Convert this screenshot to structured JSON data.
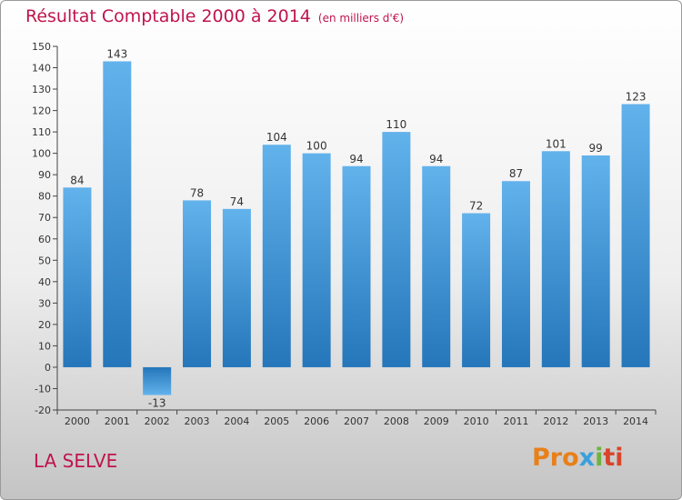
{
  "chart_data": {
    "type": "bar",
    "title": "Résultat Comptable 2000 à 2014",
    "subtitle": "(en milliers d'€)",
    "categories": [
      "2000",
      "2001",
      "2002",
      "2003",
      "2004",
      "2005",
      "2006",
      "2007",
      "2008",
      "2009",
      "2010",
      "2011",
      "2012",
      "2013",
      "2014"
    ],
    "values": [
      84,
      143,
      -13,
      78,
      74,
      104,
      100,
      94,
      110,
      94,
      72,
      87,
      101,
      99,
      123
    ],
    "value_labels": [
      "84",
      "143",
      "-13",
      "78",
      "74",
      "104",
      "100",
      "94",
      "110",
      "94",
      "72",
      "87",
      "101",
      "99",
      "123"
    ],
    "ylim": [
      -20,
      150
    ],
    "yticks": [
      -20,
      -10,
      0,
      10,
      20,
      30,
      40,
      50,
      60,
      70,
      80,
      90,
      100,
      110,
      120,
      130,
      140,
      150
    ],
    "ytick_labels": [
      "-20",
      "-10",
      "0",
      "10",
      "20",
      "30",
      "40",
      "50",
      "60",
      "70",
      "80",
      "90",
      "100",
      "110",
      "120",
      "130",
      "140",
      "150"
    ],
    "grid": false,
    "bar_color": "#3d8fd4"
  },
  "footer": {
    "commune": "LA SELVE"
  },
  "logo": {
    "p1": "Pro",
    "p2": "x",
    "p3": "i",
    "p4": "ti"
  }
}
